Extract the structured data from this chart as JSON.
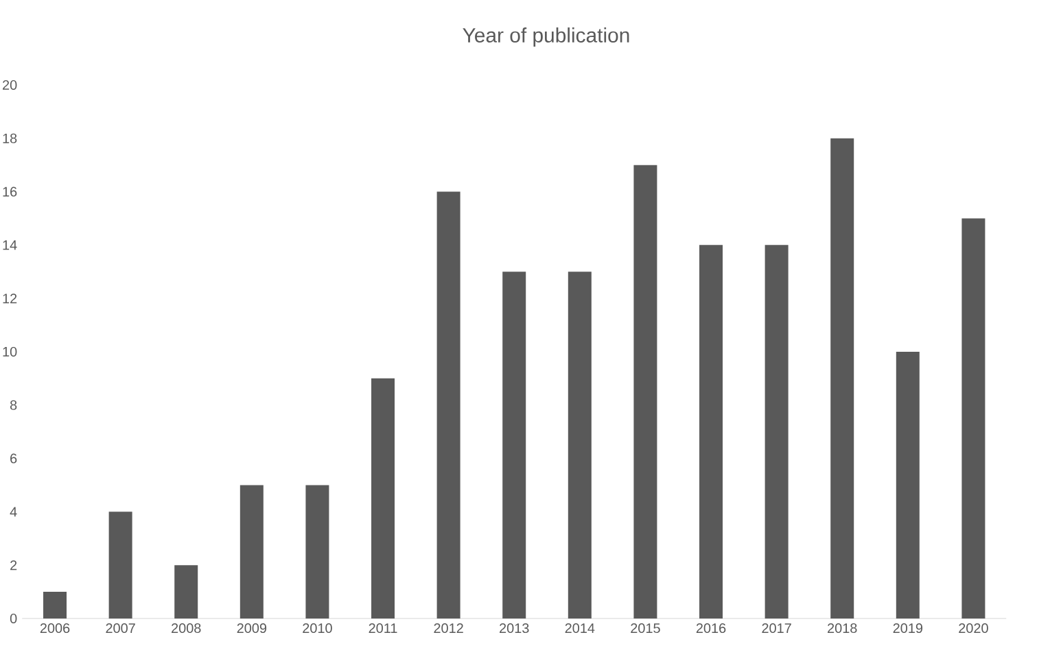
{
  "chart_data": {
    "type": "bar",
    "title": "Year of publication",
    "categories": [
      "2006",
      "2007",
      "2008",
      "2009",
      "2010",
      "2011",
      "2012",
      "2013",
      "2014",
      "2015",
      "2016",
      "2017",
      "2018",
      "2019",
      "2020"
    ],
    "values": [
      1,
      4,
      2,
      5,
      5,
      9,
      16,
      13,
      13,
      17,
      14,
      14,
      18,
      10,
      15
    ],
    "color": "#595959",
    "ylim": [
      0,
      20
    ],
    "yticks": [
      0,
      2,
      4,
      6,
      8,
      10,
      12,
      14,
      16,
      18,
      20
    ]
  }
}
